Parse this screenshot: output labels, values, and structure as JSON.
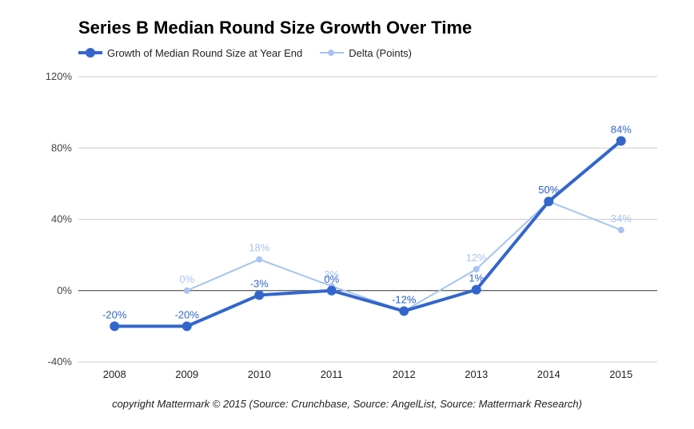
{
  "chart_data": {
    "type": "line",
    "title": "Series B Median Round Size Growth Over Time",
    "categories": [
      "2008",
      "2009",
      "2010",
      "2011",
      "2012",
      "2013",
      "2014",
      "2015"
    ],
    "ylim": [
      -40,
      120
    ],
    "yticks": [
      -40,
      0,
      40,
      80,
      120
    ],
    "ytick_labels": [
      "-40%",
      "0%",
      "40%",
      "80%",
      "120%"
    ],
    "grid": true,
    "legend_position": "top-left",
    "series": [
      {
        "name": "Growth of Median Round Size at Year End",
        "color": "#3366cc",
        "values": [
          -20,
          -20,
          -2.5,
          0,
          -11.5,
          0.5,
          50,
          84
        ],
        "labels": [
          "-20%",
          "-20%",
          "-3%",
          "0%",
          "-12%",
          "1%",
          "50%",
          "84%"
        ]
      },
      {
        "name": "Delta (Points)",
        "color": "#a7c4f0",
        "values": [
          null,
          0,
          17.5,
          2.5,
          -11.5,
          12,
          50,
          34
        ],
        "labels": [
          "",
          "0%",
          "18%",
          "3%",
          "-12%",
          "12%",
          "50%",
          "34%"
        ]
      }
    ]
  },
  "footer": "copyright Mattermark © 2015 (Source: Crunchbase, Source: AngelList, Source: Mattermark Research)"
}
